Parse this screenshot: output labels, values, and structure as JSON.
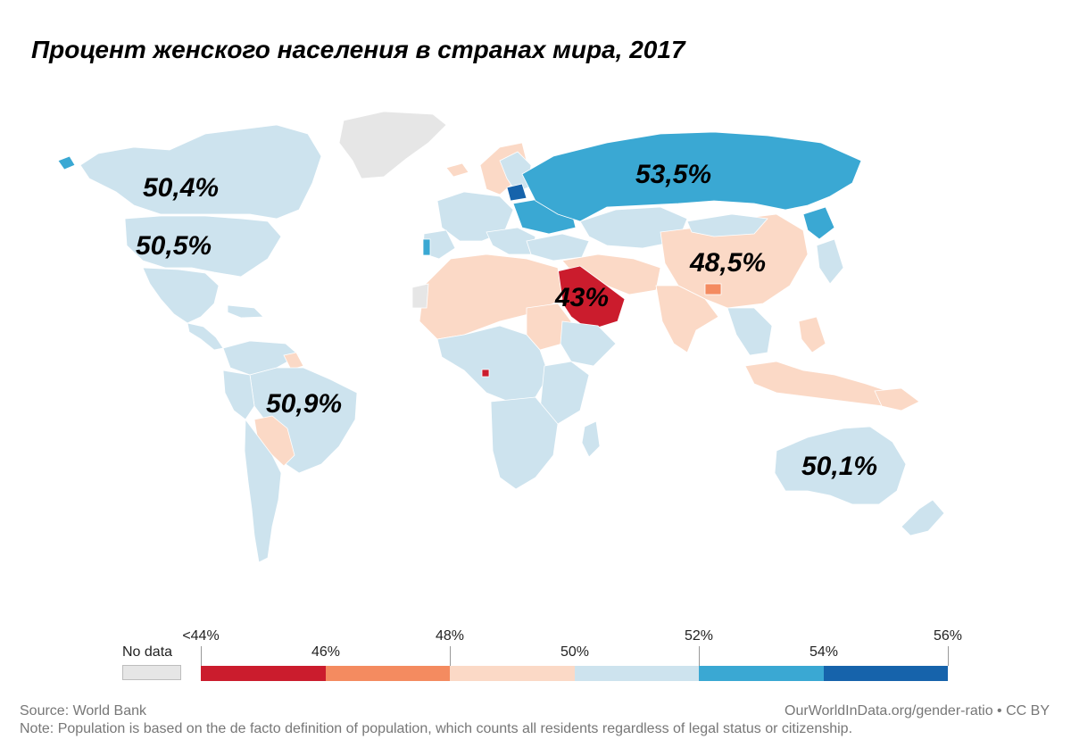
{
  "title": "Процент женского населения в странах мира, 2017",
  "colors": {
    "no_data": "#e6e6e6",
    "lt44": "#cb1c2d",
    "46_48": "#f48b60",
    "48_50": "#fbd9c6",
    "50_52": "#cde3ee",
    "52_54": "#3aa8d3",
    "54_56": "#1663ab"
  },
  "callouts": [
    {
      "id": "canada",
      "label": "50,4%"
    },
    {
      "id": "usa",
      "label": "50,5%"
    },
    {
      "id": "brazil",
      "label": "50,9%"
    },
    {
      "id": "russia",
      "label": "53,5%"
    },
    {
      "id": "saudi",
      "label": "43%"
    },
    {
      "id": "china",
      "label": "48,5%"
    },
    {
      "id": "australia",
      "label": "50,1%"
    }
  ],
  "legend": {
    "no_data_label": "No data",
    "upper_ticks": [
      "<44%",
      "48%",
      "52%",
      "56%"
    ],
    "lower_ticks": [
      "46%",
      "50%",
      "54%"
    ],
    "bins": [
      {
        "range": "<44%–46%",
        "color": "#cb1c2d"
      },
      {
        "range": "46%–48%",
        "color": "#f48b60"
      },
      {
        "range": "48%–50%",
        "color": "#fbd9c6"
      },
      {
        "range": "50%–52%",
        "color": "#cde3ee"
      },
      {
        "range": "52%–54%",
        "color": "#3aa8d3"
      },
      {
        "range": "54%–56%",
        "color": "#1663ab"
      }
    ]
  },
  "footer": {
    "source": "Source: World Bank",
    "note": "Note: Population is based on the de facto definition of population, which counts all residents regardless of legal status or citizenship.",
    "site": "OurWorldInData.org/gender-ratio • CC BY"
  }
}
